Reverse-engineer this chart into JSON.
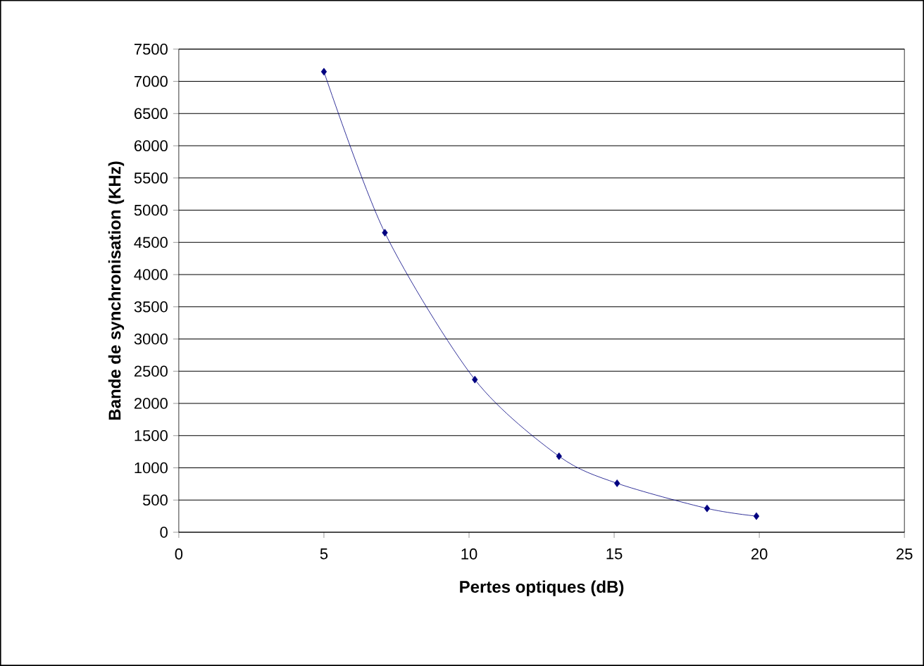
{
  "chart_data": {
    "type": "line",
    "xlabel": "Pertes optiques (dB)",
    "ylabel": "Bande de synchronisation (KHz)",
    "x": [
      5,
      7.1,
      10.2,
      13.1,
      15.1,
      18.2,
      19.9
    ],
    "series": [
      {
        "color": "#000080",
        "values": [
          7150,
          4650,
          2370,
          1180,
          760,
          370,
          250
        ]
      }
    ],
    "xlim": [
      0,
      25
    ],
    "xticks": [
      0,
      5,
      10,
      15,
      20,
      25
    ],
    "ylim": [
      0,
      7500
    ],
    "yticks": [
      0,
      500,
      1000,
      1500,
      2000,
      2500,
      3000,
      3500,
      4000,
      4500,
      5000,
      5500,
      6000,
      6500,
      7000,
      7500
    ],
    "grid": "y",
    "marker": "diamond",
    "line_style": "solid"
  }
}
